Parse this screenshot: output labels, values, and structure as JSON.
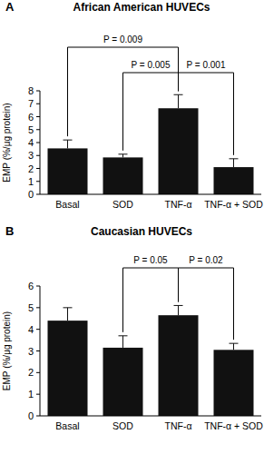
{
  "chart_data": [
    {
      "type": "bar",
      "panel_label": "A",
      "title": "African American HUVECs",
      "y_label": "EMP (%/μg protein)",
      "categories": [
        "Basal",
        "SOD",
        "TNF-α",
        "TNF-α + SOD"
      ],
      "values": [
        3.55,
        2.85,
        6.65,
        2.1
      ],
      "errors": [
        0.65,
        0.25,
        1.05,
        0.65
      ],
      "color": "#111111",
      "ylim": [
        0,
        8
      ],
      "yticks": [
        0,
        1,
        2,
        3,
        4,
        5,
        6,
        7,
        8
      ],
      "grid": false,
      "annotations": [
        {
          "text": "P = 0.009",
          "between": [
            "Basal",
            "TNF-α"
          ]
        },
        {
          "text": "P = 0.005",
          "between": [
            "SOD",
            "TNF-α"
          ]
        },
        {
          "text": "P = 0.001",
          "between": [
            "TNF-α",
            "TNF-α + SOD"
          ]
        }
      ]
    },
    {
      "type": "bar",
      "panel_label": "B",
      "title": "Caucasian HUVECs",
      "y_label": "EMP (%/μg protein)",
      "categories": [
        "Basal",
        "SOD",
        "TNF-α",
        "TNF-α + SOD"
      ],
      "values": [
        4.4,
        3.15,
        4.65,
        3.05
      ],
      "errors": [
        0.6,
        0.55,
        0.45,
        0.3
      ],
      "color": "#111111",
      "ylim": [
        0,
        6
      ],
      "yticks": [
        0,
        1,
        2,
        3,
        4,
        5,
        6
      ],
      "grid": false,
      "annotations": [
        {
          "text": "P = 0.05",
          "between": [
            "SOD",
            "TNF-α"
          ]
        },
        {
          "text": "P = 0.02",
          "between": [
            "TNF-α",
            "TNF-α + SOD"
          ]
        }
      ]
    }
  ]
}
